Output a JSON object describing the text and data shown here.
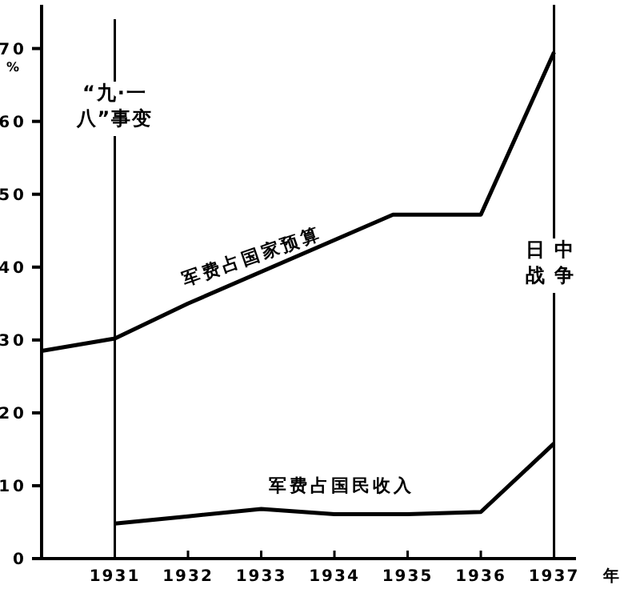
{
  "chart_data": {
    "type": "line",
    "xlabel": "年",
    "ylabel": "%",
    "xlim": [
      1930,
      1937.3
    ],
    "ylim": [
      0,
      76
    ],
    "xticks": [
      1931,
      1932,
      1933,
      1934,
      1935,
      1936,
      1937
    ],
    "yticks": [
      0,
      10,
      20,
      30,
      40,
      50,
      60,
      70
    ],
    "series": [
      {
        "name": "军费占国家预算",
        "color": "#000000",
        "x": [
          1930,
          1931,
          1932,
          1934.8,
          1936,
          1937
        ],
        "values": [
          28.5,
          30.2,
          35,
          47.2,
          47.2,
          69.5
        ]
      },
      {
        "name": "军费占国民收入",
        "color": "#000000",
        "x": [
          1931,
          1932,
          1933,
          1934,
          1935,
          1936,
          1937
        ],
        "values": [
          4.8,
          5.8,
          6.8,
          6.1,
          6.1,
          6.4,
          15.8
        ]
      }
    ],
    "ref_lines": [
      {
        "axis": "x",
        "value": 1931,
        "label": "“九·一八”事变",
        "color": "#000000"
      },
      {
        "axis": "x",
        "value": 1937,
        "label": "日中战争",
        "color": "#000000"
      }
    ],
    "grid": false,
    "marker": "none",
    "line_style": "solid"
  }
}
